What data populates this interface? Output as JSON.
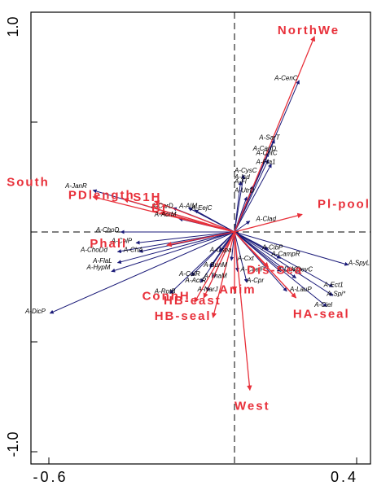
{
  "chart_data": {
    "type": "biplot",
    "xlim": [
      -0.6,
      0.4
    ],
    "ylim": [
      -1.0,
      1.0
    ],
    "x_ticks": [
      {
        "value": -0.6,
        "label": "-0.6"
      },
      {
        "value": 0.4,
        "label": "0.4"
      }
    ],
    "y_ticks": [
      {
        "value": 1.0,
        "label": "1.0"
      },
      {
        "value": -1.0,
        "label": "-1.0"
      }
    ],
    "y_minor_ticks": [
      0.5,
      0.0,
      -0.5
    ],
    "grid": false,
    "zero_lines": "dashed",
    "colors": {
      "species_arrows": "#1a1a78",
      "environment_arrows": "#e8303a",
      "axes": "#000000"
    },
    "species": [
      {
        "name": "A-CenC",
        "x": 0.21,
        "y": 0.69
      },
      {
        "name": "A-SarT",
        "x": 0.13,
        "y": 0.42
      },
      {
        "name": "A-CanD",
        "x": 0.11,
        "y": 0.36
      },
      {
        "name": "A-CntC",
        "x": 0.11,
        "y": 0.33
      },
      {
        "name": "A-Fta1",
        "x": 0.12,
        "y": 0.31
      },
      {
        "name": "A-CysC",
        "x": 0.03,
        "y": 0.26
      },
      {
        "name": "A-Isd",
        "x": 0.02,
        "y": 0.23
      },
      {
        "name": "A-FlsC",
        "x": 0.06,
        "y": 0.21
      },
      {
        "name": "A-UtrD",
        "x": 0.04,
        "y": 0.16
      },
      {
        "name": "A-JanR",
        "x": -0.46,
        "y": 0.19
      },
      {
        "name": "A-CarD",
        "x": -0.2,
        "y": 0.11
      },
      {
        "name": "A-AIM",
        "x": -0.15,
        "y": 0.11
      },
      {
        "name": "A-EejC",
        "x": -0.13,
        "y": 0.1
      },
      {
        "name": "A-AcrM",
        "x": -0.18,
        "y": 0.06
      },
      {
        "name": "A-ChoD",
        "x": -0.37,
        "y": 0.0
      },
      {
        "name": "A-CelP",
        "x": -0.32,
        "y": -0.05
      },
      {
        "name": "A-ChoDd",
        "x": -0.38,
        "y": -0.09
      },
      {
        "name": "A-ChA",
        "x": -0.31,
        "y": -0.09
      },
      {
        "name": "A-FlaL",
        "x": -0.38,
        "y": -0.14
      },
      {
        "name": "A-HypM",
        "x": -0.4,
        "y": -0.18
      },
      {
        "name": "A-DicP",
        "x": -0.6,
        "y": -0.37
      },
      {
        "name": "A-Clad",
        "x": 0.05,
        "y": 0.05
      },
      {
        "name": "A-CibP",
        "x": 0.11,
        "y": -0.08
      },
      {
        "name": "A-CampR",
        "x": 0.15,
        "y": -0.12
      },
      {
        "name": "A-SpyL",
        "x": 0.37,
        "y": -0.15
      },
      {
        "name": "A-DivCs",
        "x": 0.15,
        "y": -0.18
      },
      {
        "name": "A-DevC",
        "x": 0.2,
        "y": -0.21
      },
      {
        "name": "A-Ect1",
        "x": 0.32,
        "y": -0.25
      },
      {
        "name": "A-LauP",
        "x": 0.17,
        "y": -0.27
      },
      {
        "name": "A-Spi*",
        "x": 0.32,
        "y": -0.29
      },
      {
        "name": "A-Ciel",
        "x": 0.3,
        "y": -0.34
      },
      {
        "name": "A-CcelP",
        "x": 0.01,
        "y": -0.18
      },
      {
        "name": "A-Cxt",
        "x": -0.01,
        "y": -0.13
      },
      {
        "name": "A-Cepr",
        "x": 0.04,
        "y": -0.23
      },
      {
        "name": "A-RotB",
        "x": -0.21,
        "y": -0.28
      },
      {
        "name": "A-AcrR",
        "x": -0.11,
        "y": -0.23
      },
      {
        "name": "A-CalR",
        "x": -0.14,
        "y": -0.2
      },
      {
        "name": "A-NarJ",
        "x": -0.09,
        "y": -0.27
      },
      {
        "name": "A-ThaM",
        "x": -0.07,
        "y": -0.21
      },
      {
        "name": "A-BunM",
        "x": -0.08,
        "y": -0.16
      },
      {
        "name": "A-Cspa",
        "x": -0.05,
        "y": -0.09
      }
    ],
    "environment": [
      {
        "name": "NorthWe",
        "x": 0.26,
        "y": 0.89
      },
      {
        "name": "South",
        "x": -0.46,
        "y": 0.16
      },
      {
        "name": "PDlength",
        "x": -0.36,
        "y": 0.15
      },
      {
        "name": "S1H",
        "x": -0.26,
        "y": 0.14
      },
      {
        "name": "Bt",
        "x": -0.24,
        "y": 0.09
      },
      {
        "name": "Pl-pool",
        "x": 0.22,
        "y": 0.08
      },
      {
        "name": "Phall",
        "x": -0.22,
        "y": -0.06
      },
      {
        "name": "Dis-Sea",
        "x": 0.11,
        "y": -0.16
      },
      {
        "name": "Anim",
        "x": 0.0,
        "y": -0.27
      },
      {
        "name": "ConnH",
        "x": -0.1,
        "y": -0.3
      },
      {
        "name": "HB-east",
        "x": -0.13,
        "y": -0.32
      },
      {
        "name": "HB-seal",
        "x": -0.07,
        "y": -0.39
      },
      {
        "name": "HA-seal",
        "x": 0.2,
        "y": -0.3
      },
      {
        "name": "West",
        "x": 0.05,
        "y": -0.72
      }
    ],
    "species_labels": [
      {
        "text": "A-CenC",
        "x": 0.13,
        "y": 0.69
      },
      {
        "text": "A-SarT",
        "x": 0.08,
        "y": 0.42
      },
      {
        "text": "A-CanD",
        "x": 0.06,
        "y": 0.37
      },
      {
        "text": "A-CntC",
        "x": 0.07,
        "y": 0.35
      },
      {
        "text": "A-Fta1",
        "x": 0.07,
        "y": 0.31
      },
      {
        "text": "A-CysC",
        "x": 0.0,
        "y": 0.27
      },
      {
        "text": "A-Isd",
        "x": 0.0,
        "y": 0.24
      },
      {
        "text": "A-Fl",
        "x": 0.0,
        "y": 0.22
      },
      {
        "text": "A-UtrD",
        "x": 0.0,
        "y": 0.18
      },
      {
        "text": "A-JanR",
        "x": -0.55,
        "y": 0.2
      },
      {
        "text": "A-CarD",
        "x": -0.27,
        "y": 0.11
      },
      {
        "text": "A-AIM",
        "x": -0.18,
        "y": 0.11
      },
      {
        "text": "A-EejC",
        "x": -0.14,
        "y": 0.1
      },
      {
        "text": "A-AcrM",
        "x": -0.26,
        "y": 0.07
      },
      {
        "text": "A-ChoD",
        "x": -0.45,
        "y": 0.0
      },
      {
        "text": "A-CelP",
        "x": -0.4,
        "y": -0.05
      },
      {
        "text": "A-ChoDd",
        "x": -0.5,
        "y": -0.09
      },
      {
        "text": "A-ChA",
        "x": -0.36,
        "y": -0.09
      },
      {
        "text": "A-FlaL",
        "x": -0.46,
        "y": -0.14
      },
      {
        "text": "A-HypM",
        "x": -0.48,
        "y": -0.17
      },
      {
        "text": "A-DicP",
        "x": -0.68,
        "y": -0.37
      },
      {
        "text": "A-Clad",
        "x": 0.07,
        "y": 0.05
      },
      {
        "text": "A-CibP",
        "x": 0.09,
        "y": -0.08
      },
      {
        "text": "A-CampR",
        "x": 0.12,
        "y": -0.11
      },
      {
        "text": "A-SpyL",
        "x": 0.37,
        "y": -0.15
      },
      {
        "text": "A-DivCs",
        "x": 0.14,
        "y": -0.18
      },
      {
        "text": "A-DevC",
        "x": 0.18,
        "y": -0.18
      },
      {
        "text": "A-Ect1",
        "x": 0.29,
        "y": -0.25
      },
      {
        "text": "A-LauP",
        "x": 0.18,
        "y": -0.27
      },
      {
        "text": "A-Spi*",
        "x": 0.3,
        "y": -0.29
      },
      {
        "text": "A-Ciel",
        "x": 0.26,
        "y": -0.34
      },
      {
        "text": "A-CcelP",
        "x": 0.02,
        "y": -0.18
      },
      {
        "text": "A-Cxt",
        "x": 0.01,
        "y": -0.13
      },
      {
        "text": "A-Cpr",
        "x": 0.04,
        "y": -0.23
      },
      {
        "text": "A-RotB",
        "x": -0.26,
        "y": -0.28
      },
      {
        "text": "A-AcrR",
        "x": -0.16,
        "y": -0.23
      },
      {
        "text": "A-CalR",
        "x": -0.18,
        "y": -0.2
      },
      {
        "text": "A-NarJ",
        "x": -0.12,
        "y": -0.27
      },
      {
        "text": "A-ThaM",
        "x": -0.1,
        "y": -0.21
      },
      {
        "text": "A-BunM",
        "x": -0.1,
        "y": -0.16
      },
      {
        "text": "A-Cspa",
        "x": -0.08,
        "y": -0.09
      }
    ],
    "environment_labels": [
      {
        "text": "NorthWe",
        "x": 0.14,
        "y": 0.9
      },
      {
        "text": "South",
        "x": -0.74,
        "y": 0.21
      },
      {
        "text": "PDlength",
        "x": -0.54,
        "y": 0.15
      },
      {
        "text": "S1H",
        "x": -0.33,
        "y": 0.14
      },
      {
        "text": "Bt",
        "x": -0.27,
        "y": 0.09
      },
      {
        "text": "Pl-pool",
        "x": 0.27,
        "y": 0.11
      },
      {
        "text": "Phall",
        "x": -0.47,
        "y": -0.07
      },
      {
        "text": "Dis-Sea",
        "x": 0.04,
        "y": -0.19
      },
      {
        "text": "Anim",
        "x": -0.05,
        "y": -0.28
      },
      {
        "text": "ConnH",
        "x": -0.3,
        "y": -0.31
      },
      {
        "text": "HB-east",
        "x": -0.23,
        "y": -0.33
      },
      {
        "text": "HB-seal",
        "x": -0.26,
        "y": -0.4
      },
      {
        "text": "HA-seal",
        "x": 0.19,
        "y": -0.39
      },
      {
        "text": "West",
        "x": 0.0,
        "y": -0.81
      }
    ]
  }
}
